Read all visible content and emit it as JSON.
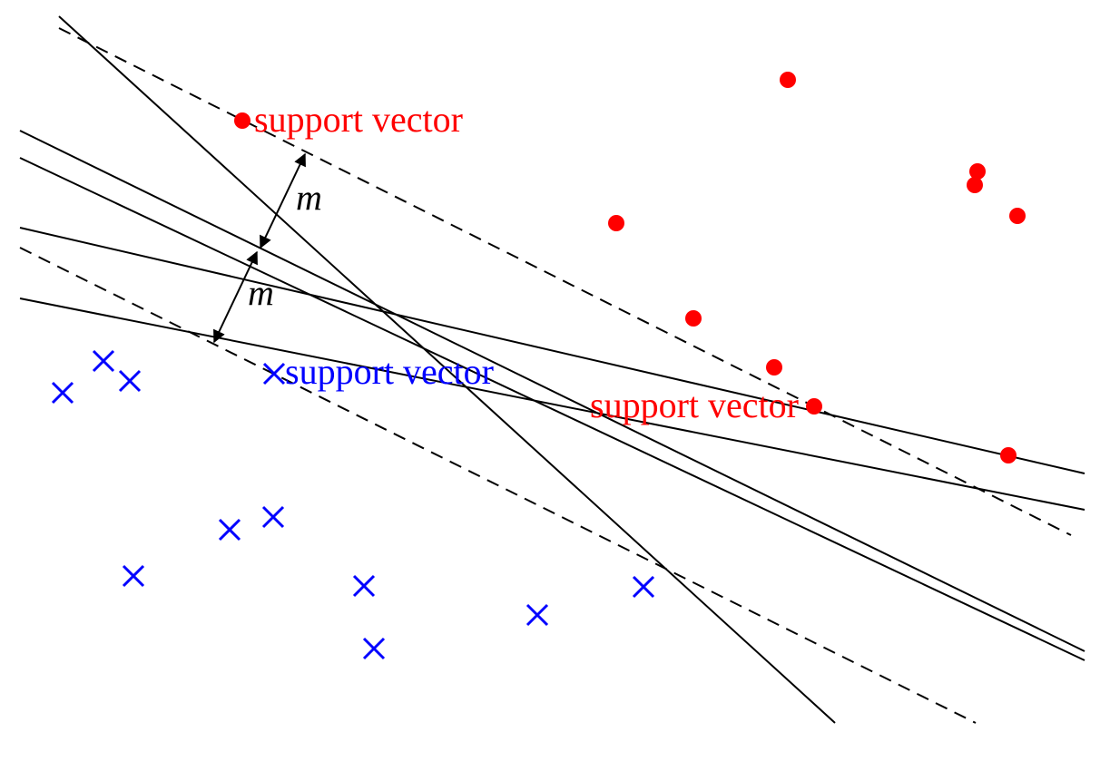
{
  "labels": {
    "support_vector": "support vector",
    "margin": "m"
  },
  "colors": {
    "positive": "#ff0000",
    "negative": "#0000ff",
    "line": "#000000"
  },
  "markers": {
    "positive": "filled-circle",
    "negative": "cross"
  }
}
